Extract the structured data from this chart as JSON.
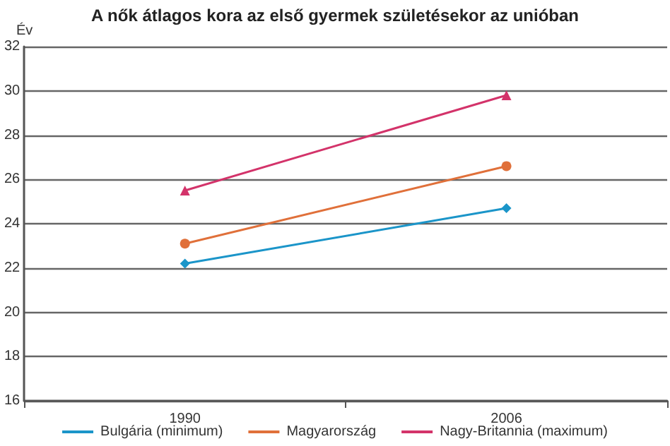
{
  "chart_data": {
    "type": "line",
    "title": "A nők átlagos kora az első gyermek születésekor az unióban",
    "ylabel": "Év",
    "categories": [
      "1990",
      "2006"
    ],
    "series": [
      {
        "name": "Bulgária (minimum)",
        "color": "#1b95c9",
        "values": [
          22.2,
          24.7
        ],
        "marker": "diamond"
      },
      {
        "name": "Magyarország",
        "color": "#e0703a",
        "values": [
          23.1,
          26.6
        ],
        "marker": "circle"
      },
      {
        "name": "Nagy-Britannia (maximum)",
        "color": "#d3336a",
        "values": [
          25.5,
          29.8
        ],
        "marker": "triangle"
      }
    ],
    "ylim": [
      16,
      32
    ],
    "yticks": [
      16,
      18,
      20,
      22,
      24,
      26,
      28,
      30,
      32
    ],
    "grid": "y",
    "legend": "bottom",
    "line_style": "solid"
  }
}
